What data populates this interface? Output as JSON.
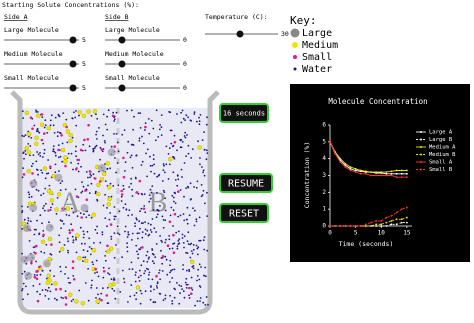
{
  "header": {
    "title": "Starting Solute Concentrations (%):"
  },
  "sides": [
    {
      "name": "Side A",
      "sliders": [
        {
          "label": "Large Molecule",
          "value": 5
        },
        {
          "label": "Medium Molecule",
          "value": 5
        },
        {
          "label": "Small Molecule",
          "value": 5
        }
      ]
    },
    {
      "name": "Side B",
      "sliders": [
        {
          "label": "Large Molecule",
          "value": 0
        },
        {
          "label": "Medium Molecule",
          "value": 0
        },
        {
          "label": "Small Molecule",
          "value": 0
        }
      ]
    }
  ],
  "temperature": {
    "label": "Temperature (C):",
    "value": 30
  },
  "key": {
    "title": "Key:",
    "items": [
      {
        "label": "Large",
        "color": "#888888"
      },
      {
        "label": "Medium",
        "color": "#f2e600"
      },
      {
        "label": "Small",
        "color": "#e0208a"
      },
      {
        "label": "Water",
        "color": "#1a1a8c"
      }
    ]
  },
  "beaker": {
    "left": "A",
    "right": "B"
  },
  "buttons": {
    "timer": "16 seconds",
    "resume": "RESUME",
    "reset": "RESET"
  },
  "chart_data": {
    "type": "line",
    "title": "Molecule Concentration",
    "x_label": "Time (seconds)",
    "y_label": "Concentration (%)",
    "x": [
      0,
      1,
      2,
      3,
      4,
      5,
      6,
      7,
      8,
      9,
      10,
      11,
      12,
      13,
      14,
      15
    ],
    "xlim": [
      0,
      16
    ],
    "xticks": [
      0,
      5,
      10,
      15
    ],
    "ylim": [
      0,
      6
    ],
    "yticks": [
      0,
      1,
      2,
      3,
      4,
      5,
      6
    ],
    "series": [
      {
        "name": "Large A",
        "color": "#ffffff",
        "line_style": "solid",
        "values": [
          5,
          4.3,
          3.9,
          3.6,
          3.4,
          3.3,
          3.25,
          3.2,
          3.2,
          3.15,
          3.15,
          3.1,
          3.1,
          3.1,
          3.1,
          3.1
        ]
      },
      {
        "name": "Large B",
        "color": "#ffffff",
        "line_style": "dashed",
        "values": [
          0,
          0,
          0,
          0,
          0,
          0,
          0,
          0,
          0,
          0,
          0,
          0,
          0.1,
          0.1,
          0.2,
          0.2
        ]
      },
      {
        "name": "Medium A",
        "color": "#f2e600",
        "line_style": "solid",
        "values": [
          5,
          4.4,
          4,
          3.7,
          3.5,
          3.4,
          3.3,
          3.25,
          3.2,
          3.2,
          3.2,
          3.2,
          3.25,
          3.3,
          3.3,
          3.3
        ]
      },
      {
        "name": "Medium B",
        "color": "#f2e600",
        "line_style": "dashed",
        "values": [
          0,
          0,
          0,
          0,
          0,
          0,
          0,
          0,
          0,
          0.1,
          0.1,
          0.2,
          0.3,
          0.4,
          0.4,
          0.5
        ]
      },
      {
        "name": "Small A",
        "color": "#ff3030",
        "line_style": "solid",
        "values": [
          5,
          4.3,
          3.8,
          3.5,
          3.3,
          3.2,
          3.1,
          3.1,
          3,
          3,
          3,
          3,
          3,
          2.9,
          2.9,
          2.9
        ]
      },
      {
        "name": "Small B",
        "color": "#ff3030",
        "line_style": "dashed",
        "values": [
          0,
          0,
          0,
          0,
          0,
          0,
          0,
          0.1,
          0.2,
          0.3,
          0.3,
          0.5,
          0.6,
          0.8,
          1,
          1.1
        ]
      }
    ]
  }
}
